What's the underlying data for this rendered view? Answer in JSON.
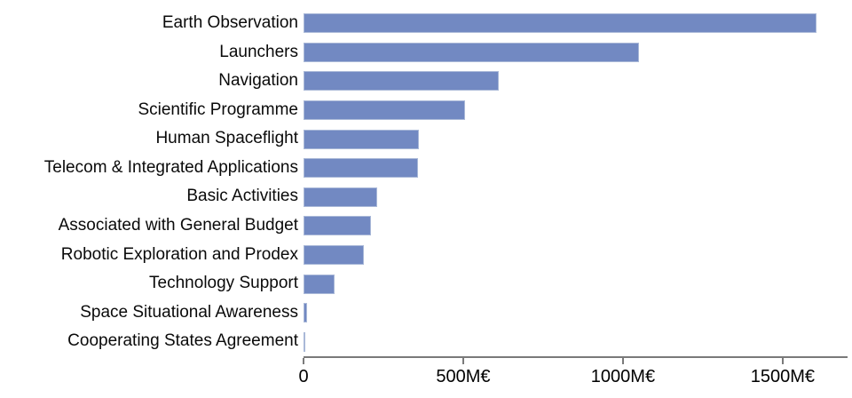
{
  "chart_data": {
    "type": "bar",
    "orientation": "horizontal",
    "title": "",
    "unit": "M€",
    "categories": [
      "Earth Observation",
      "Launchers",
      "Navigation",
      "Scientific Programme",
      "Human Spaceflight",
      "Telecom & Integrated Applications",
      "Basic Activities",
      "Associated with General Budget",
      "Robotic Exploration and Prodex",
      "Technology Support",
      "Space Situational Awareness",
      "Cooperating States Agreement"
    ],
    "values": [
      1605,
      1050,
      610,
      505,
      362,
      358,
      230,
      212,
      190,
      97,
      12,
      3
    ],
    "x_ticks": [
      {
        "value": 0,
        "label": "0"
      },
      {
        "value": 500,
        "label": "500M€"
      },
      {
        "value": 1000,
        "label": "1000M€"
      },
      {
        "value": 1500,
        "label": "1500M€"
      }
    ],
    "xlim": [
      0,
      1703
    ],
    "grid": false,
    "legend": null,
    "colors": {
      "bar_fill": "#7289c2",
      "bar_border": "#aab9d8",
      "axis": "#7a7a7a",
      "text": "#0a0a0a"
    }
  }
}
